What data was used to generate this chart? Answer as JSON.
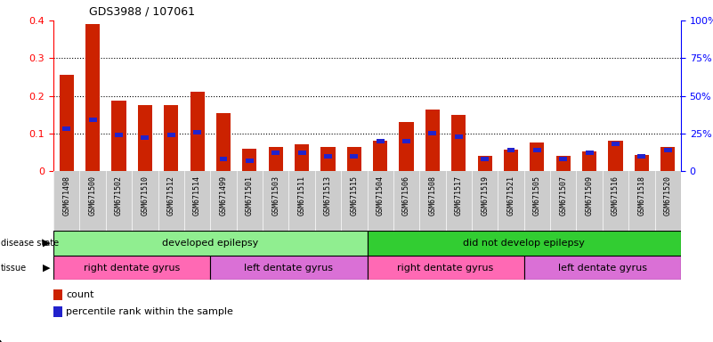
{
  "title": "GDS3988 / 107061",
  "samples": [
    "GSM671498",
    "GSM671500",
    "GSM671502",
    "GSM671510",
    "GSM671512",
    "GSM671514",
    "GSM671499",
    "GSM671501",
    "GSM671503",
    "GSM671511",
    "GSM671513",
    "GSM671515",
    "GSM671504",
    "GSM671506",
    "GSM671508",
    "GSM671517",
    "GSM671519",
    "GSM671521",
    "GSM671505",
    "GSM671507",
    "GSM671509",
    "GSM671516",
    "GSM671518",
    "GSM671520"
  ],
  "red_values": [
    0.255,
    0.39,
    0.188,
    0.175,
    0.175,
    0.21,
    0.155,
    0.06,
    0.065,
    0.07,
    0.065,
    0.065,
    0.08,
    0.13,
    0.163,
    0.15,
    0.04,
    0.058,
    0.075,
    0.04,
    0.052,
    0.08,
    0.042,
    0.065
  ],
  "blue_values_pct": [
    28,
    34,
    24,
    22,
    24,
    26,
    8,
    7,
    12,
    12,
    10,
    10,
    20,
    20,
    25,
    23,
    8,
    14,
    14,
    8,
    12,
    18,
    10,
    14
  ],
  "ylim_left": [
    0,
    0.4
  ],
  "ylim_right": [
    0,
    100
  ],
  "yticks_left": [
    0,
    0.1,
    0.2,
    0.3,
    0.4
  ],
  "yticks_right": [
    0,
    25,
    50,
    75,
    100
  ],
  "ytick_labels_left": [
    "0",
    "0.1",
    "0.2",
    "0.3",
    "0.4"
  ],
  "ytick_labels_right": [
    "0",
    "25%",
    "50%",
    "75%",
    "100%"
  ],
  "disease_groups": [
    {
      "label": "developed epilepsy",
      "start": 0,
      "end": 12,
      "color": "#90EE90"
    },
    {
      "label": "did not develop epilepsy",
      "start": 12,
      "end": 24,
      "color": "#32CD32"
    }
  ],
  "tissue_groups": [
    {
      "label": "right dentate gyrus",
      "start": 0,
      "end": 6,
      "color": "#FF69B4"
    },
    {
      "label": "left dentate gyrus",
      "start": 6,
      "end": 12,
      "color": "#DA70D6"
    },
    {
      "label": "right dentate gyrus",
      "start": 12,
      "end": 18,
      "color": "#FF69B4"
    },
    {
      "label": "left dentate gyrus",
      "start": 18,
      "end": 24,
      "color": "#DA70D6"
    }
  ],
  "bar_width": 0.55,
  "red_color": "#CC2200",
  "blue_color": "#2222CC",
  "xtick_bg": "#CCCCCC"
}
